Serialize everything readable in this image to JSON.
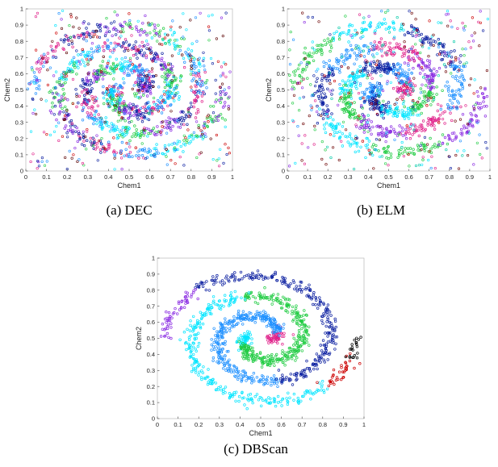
{
  "chart_data": [
    {
      "id": "dec",
      "type": "scatter",
      "caption": "(a) DEC",
      "xlabel": "Chem1",
      "ylabel": "Chem2",
      "xlim": [
        0,
        1
      ],
      "ylim": [
        0,
        1
      ],
      "xticks": [
        "0",
        "0.1",
        "0.2",
        "0.3",
        "0.4",
        "0.5",
        "0.6",
        "0.7",
        "0.8",
        "0.9",
        "1"
      ],
      "yticks": [
        "0",
        "0.1",
        "0.2",
        "0.3",
        "0.4",
        "0.5",
        "0.6",
        "0.7",
        "0.8",
        "0.9",
        "1"
      ],
      "grid": false,
      "colors": [
        "#e0218a",
        "#1e90ff",
        "#00e5ff",
        "#22cc44",
        "#8a2be2",
        "#0a1ea0",
        "#cc0000",
        "#5a0000"
      ],
      "structure": "two interleaved spirals of ~1400 points with segment-wise mixed cluster colors plus uniform background noise",
      "spiral_center": [
        0.5,
        0.5
      ],
      "noise_points": 320
    },
    {
      "id": "elm",
      "type": "scatter",
      "caption": "(b) ELM",
      "xlabel": "Chem1",
      "ylabel": "Chem2",
      "xlim": [
        0,
        1
      ],
      "ylim": [
        0,
        1
      ],
      "xticks": [
        "0",
        "0.1",
        "0.2",
        "0.3",
        "0.4",
        "0.5",
        "0.6",
        "0.7",
        "0.8",
        "0.9",
        "1"
      ],
      "yticks": [
        "0",
        "0.1",
        "0.2",
        "0.3",
        "0.4",
        "0.5",
        "0.6",
        "0.7",
        "0.8",
        "0.9",
        "1"
      ],
      "grid": false,
      "colors": [
        "#1e90ff",
        "#0a1ea0",
        "#00e5ff",
        "#22cc44",
        "#8a2be2",
        "#e0218a",
        "#cc0000",
        "#6b0000",
        "#00c9a7"
      ],
      "structure": "two interleaved spirals with contiguous colored segments plus uniform background noise",
      "spiral_center": [
        0.5,
        0.5
      ],
      "noise_points": 320
    },
    {
      "id": "dbscan",
      "type": "scatter",
      "caption": "(c) DBScan",
      "xlabel": "Chem1",
      "ylabel": "Chem2",
      "xlim": [
        0,
        1
      ],
      "ylim": [
        0,
        1
      ],
      "xticks": [
        "0",
        "0.1",
        "0.2",
        "0.3",
        "0.4",
        "0.5",
        "0.6",
        "0.7",
        "0.8",
        "0.9",
        "1"
      ],
      "yticks": [
        "0",
        "0.1",
        "0.2",
        "0.3",
        "0.4",
        "0.5",
        "0.6",
        "0.7",
        "0.8",
        "0.9",
        "1"
      ],
      "grid": false,
      "colors": [
        "#0a1ea0",
        "#00e5ff",
        "#22cc44",
        "#8a2be2",
        "#1e90ff",
        "#e0218a",
        "#cc0000",
        "#000000"
      ],
      "structure": "two clean interleaved spirals clustered into large contiguous arms, no background noise",
      "spiral_center": [
        0.5,
        0.5
      ],
      "noise_points": 0
    }
  ]
}
